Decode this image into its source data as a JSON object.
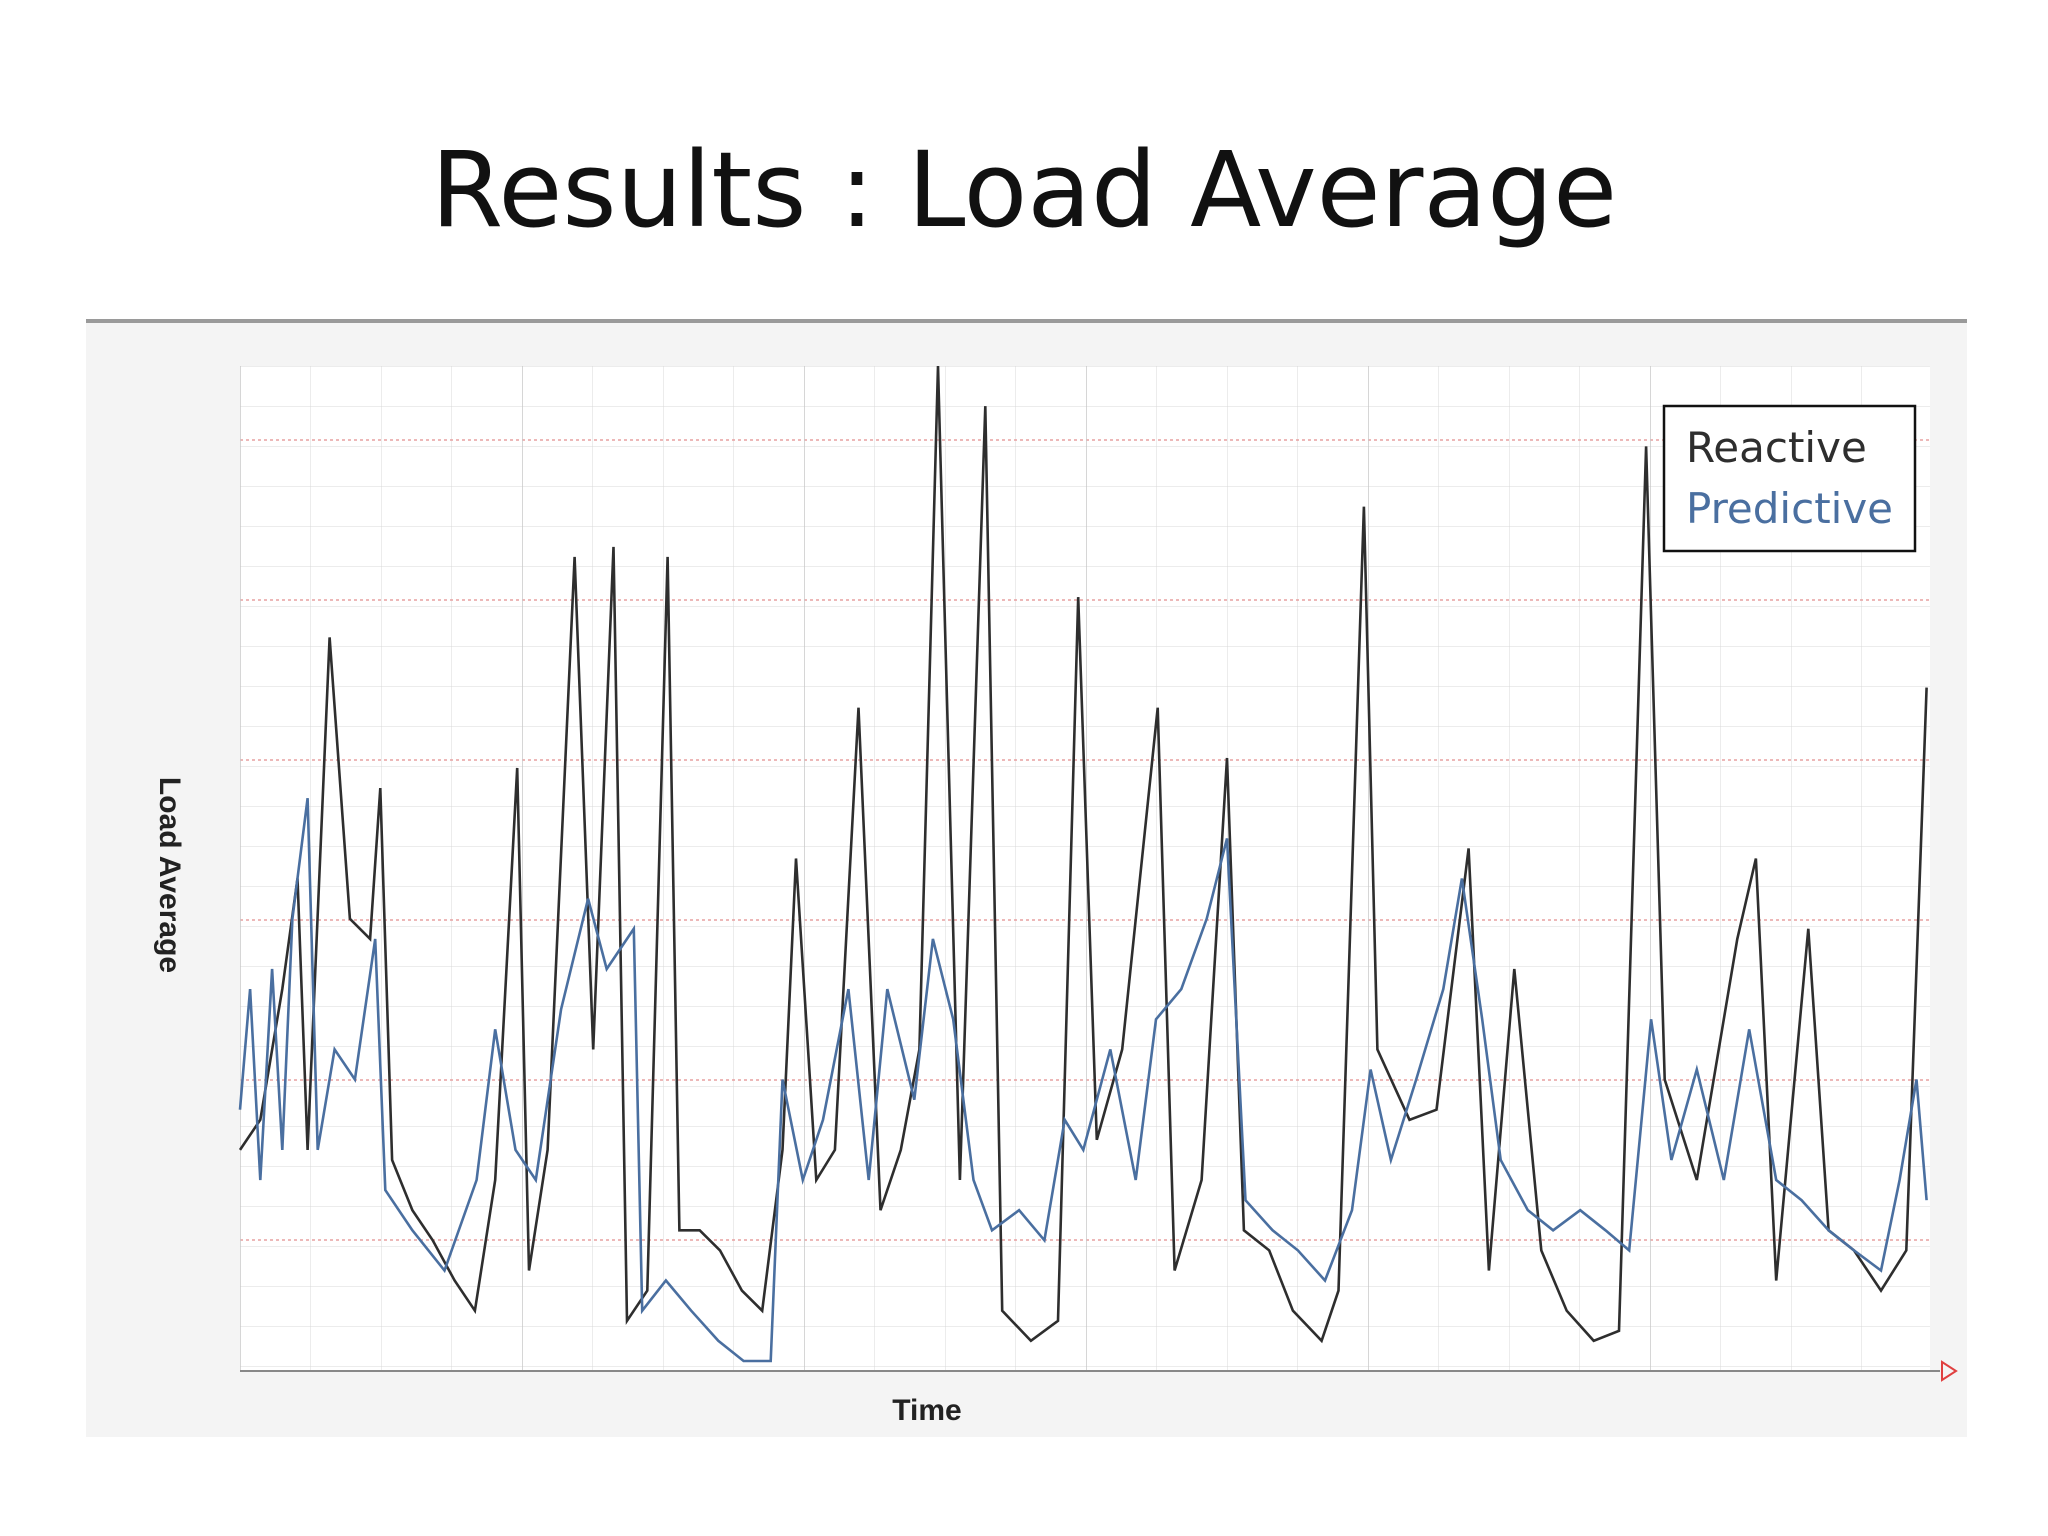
{
  "chart_data": {
    "type": "line",
    "title": "Results : Load Average",
    "x_label": "Time",
    "y_label": "Load Average",
    "xlim": [
      0,
      100
    ],
    "ylim": [
      0,
      100
    ],
    "legend": "top-right",
    "series": [
      {
        "name": "Reactive",
        "color": "#2e2e2e",
        "x": [
          0,
          1.2,
          2.5,
          3.4,
          4.0,
          5.3,
          6.5,
          7.7,
          8.3,
          9.0,
          10.2,
          11.4,
          12.7,
          13.9,
          15.1,
          16.4,
          17.1,
          18.2,
          19.8,
          20.9,
          22.1,
          22.9,
          24.1,
          25.3,
          26.0,
          27.2,
          28.4,
          29.7,
          30.9,
          32.1,
          32.9,
          34.1,
          35.2,
          36.6,
          37.9,
          39.1,
          40.2,
          41.3,
          42.6,
          44.1,
          45.1,
          46.8,
          48.4,
          49.6,
          50.7,
          52.2,
          54.3,
          55.3,
          56.9,
          58.4,
          59.4,
          60.9,
          62.3,
          64.0,
          65.0,
          66.5,
          67.3,
          69.2,
          70.8,
          72.7,
          73.9,
          75.4,
          77.0,
          78.5,
          80.1,
          81.6,
          83.2,
          84.3,
          86.2,
          88.6,
          89.7,
          90.9,
          92.8,
          94.0,
          95.5,
          97.1,
          98.6,
          99.8
        ],
        "values": [
          22,
          25,
          38,
          49,
          22,
          73,
          45,
          43,
          58,
          21,
          16,
          13,
          9,
          6,
          19,
          60,
          10,
          22,
          81,
          32,
          82,
          5,
          8,
          81,
          14,
          14,
          12,
          8,
          6,
          22,
          51,
          19,
          22,
          66,
          16,
          22,
          32,
          100,
          19,
          96,
          6,
          3,
          5,
          77,
          23,
          32,
          66,
          10,
          19,
          61,
          14,
          12,
          6,
          3,
          8,
          86,
          32,
          25,
          26,
          52,
          10,
          40,
          12,
          6,
          3,
          4,
          92,
          29,
          19,
          43,
          51,
          9,
          44,
          14,
          12,
          8,
          12,
          68
        ]
      },
      {
        "name": "Predictive",
        "color": "#4a6fa0",
        "x": [
          0,
          0.6,
          1.2,
          1.9,
          2.5,
          3.1,
          4.0,
          4.6,
          5.6,
          6.8,
          8.0,
          8.6,
          10.2,
          12.1,
          14.0,
          15.1,
          16.3,
          17.5,
          19.0,
          20.6,
          21.7,
          23.3,
          23.8,
          25.2,
          26.7,
          28.3,
          29.8,
          31.4,
          32.1,
          33.3,
          34.5,
          36.0,
          37.2,
          38.3,
          39.9,
          41.0,
          42.2,
          43.4,
          44.5,
          46.1,
          47.6,
          48.8,
          49.9,
          51.5,
          53.0,
          54.2,
          55.7,
          57.2,
          58.4,
          59.5,
          61.1,
          62.6,
          64.2,
          65.8,
          66.9,
          68.1,
          69.6,
          71.2,
          72.3,
          73.5,
          74.6,
          76.2,
          77.7,
          79.3,
          80.8,
          82.2,
          83.5,
          84.7,
          86.2,
          87.8,
          89.3,
          90.9,
          92.4,
          94.0,
          95.5,
          97.1,
          98.2,
          99.2,
          99.8
        ],
        "values": [
          26,
          38,
          19,
          40,
          22,
          45,
          57,
          22,
          32,
          29,
          43,
          18,
          14,
          10,
          19,
          34,
          22,
          19,
          36,
          47,
          40,
          44,
          6,
          9,
          6,
          3,
          1,
          1,
          29,
          19,
          25,
          38,
          19,
          38,
          27,
          43,
          35,
          19,
          14,
          16,
          13,
          25,
          22,
          32,
          19,
          35,
          38,
          45,
          53,
          17,
          14,
          12,
          9,
          16,
          30,
          21,
          29,
          38,
          49,
          35,
          21,
          16,
          14,
          16,
          14,
          12,
          35,
          21,
          30,
          19,
          34,
          19,
          17,
          14,
          12,
          10,
          19,
          29,
          17
        ]
      }
    ]
  }
}
